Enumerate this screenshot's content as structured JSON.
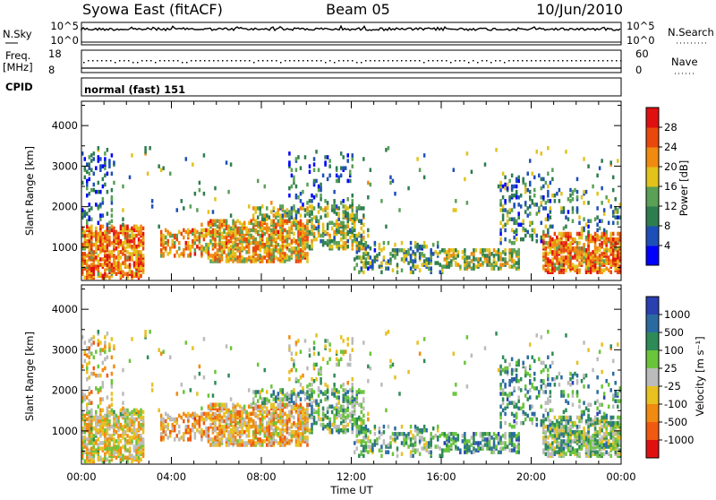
{
  "header": {
    "radar": "Syowa East (fitACF)",
    "beam": "Beam 05",
    "date": "10/Jun/2010"
  },
  "top_panels": {
    "nsky": {
      "label": "N.Sky",
      "left_ticks": [
        "10^5",
        "10^0"
      ],
      "right_label": "N.Search",
      "right_ticks": [
        "10^5",
        "10^0"
      ]
    },
    "freq": {
      "label_line1": "Freq.",
      "label_line2": "[MHz]",
      "left_ticks": [
        "18",
        "8"
      ],
      "right_label": "Nave",
      "right_ticks": [
        "60",
        "0"
      ]
    },
    "cpid": {
      "label": "CPID",
      "value": "normal (fast) 151"
    }
  },
  "chart_data": [
    {
      "type": "heatmap",
      "name": "power",
      "ylabel": "Slant Range [km]",
      "xlabel": "",
      "x_ticks": [
        "00:00",
        "04:00",
        "08:00",
        "12:00",
        "16:00",
        "20:00",
        "00:00"
      ],
      "x_range_hours": [
        0,
        24
      ],
      "y_ticks": [
        1000,
        2000,
        3000,
        4000
      ],
      "ylim": [
        180,
        4600
      ],
      "colorbar": {
        "label": "Power [dB]",
        "ticks": [
          "4",
          "8",
          "12",
          "16",
          "20",
          "24",
          "28"
        ],
        "range": [
          0,
          30
        ],
        "colors": [
          "#0000ff",
          "#1e4fb8",
          "#2e7d4f",
          "#5aa055",
          "#e3c21a",
          "#f08a10",
          "#e8480c",
          "#e01010"
        ]
      }
    },
    {
      "type": "heatmap",
      "name": "velocity",
      "ylabel": "Slant Range [km]",
      "xlabel": "Time UT",
      "x_ticks": [
        "00:00",
        "04:00",
        "08:00",
        "12:00",
        "16:00",
        "20:00",
        "00:00"
      ],
      "x_range_hours": [
        0,
        24
      ],
      "y_ticks": [
        1000,
        2000,
        3000,
        4000
      ],
      "ylim": [
        180,
        4600
      ],
      "colorbar": {
        "label": "Velocity [m s⁻¹]",
        "ticks": [
          "1000",
          "500",
          "100",
          "25",
          "-25",
          "-100",
          "-500",
          "-1000"
        ],
        "colors": [
          "#2a3fb0",
          "#2a6aa0",
          "#2e8b57",
          "#6ac43a",
          "#bbbbbb",
          "#e8c020",
          "#f08a10",
          "#f05a10",
          "#e01010"
        ]
      }
    }
  ],
  "colors": {
    "ground_scatter": "#aaaaaa"
  }
}
